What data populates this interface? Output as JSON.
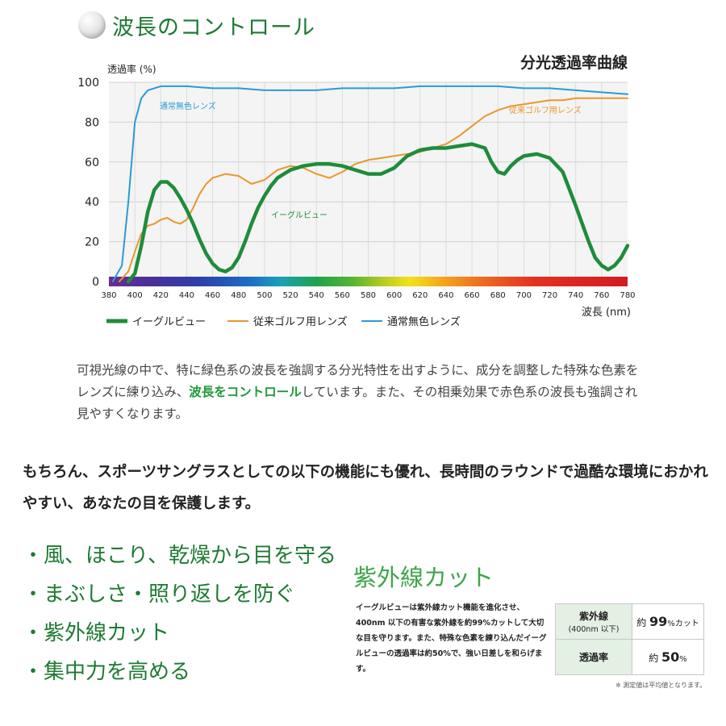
{
  "section_title": "波長のコントロール",
  "chart_data": {
    "type": "line",
    "title": "分光透過率曲線",
    "ylabel": "透過率 (%)",
    "xlabel": "波長 (nm)",
    "ylim": [
      0,
      100
    ],
    "xlim": [
      380,
      780
    ],
    "x_ticks": [
      380,
      400,
      420,
      440,
      460,
      480,
      500,
      520,
      540,
      560,
      580,
      600,
      620,
      640,
      660,
      680,
      700,
      720,
      740,
      760,
      780
    ],
    "y_ticks": [
      0,
      20,
      40,
      60,
      80,
      100
    ],
    "legend_position": "bottom",
    "series": [
      {
        "name": "イーグルビュー",
        "color": "#1e8c3a",
        "points": [
          [
            395,
            0
          ],
          [
            400,
            4
          ],
          [
            405,
            18
          ],
          [
            410,
            35
          ],
          [
            415,
            46
          ],
          [
            420,
            50
          ],
          [
            425,
            50
          ],
          [
            430,
            47
          ],
          [
            435,
            42
          ],
          [
            440,
            36
          ],
          [
            445,
            29
          ],
          [
            450,
            21
          ],
          [
            455,
            14
          ],
          [
            460,
            9
          ],
          [
            465,
            6
          ],
          [
            470,
            5
          ],
          [
            475,
            7
          ],
          [
            480,
            12
          ],
          [
            485,
            20
          ],
          [
            490,
            29
          ],
          [
            495,
            37
          ],
          [
            500,
            43
          ],
          [
            505,
            48
          ],
          [
            510,
            52
          ],
          [
            520,
            56
          ],
          [
            530,
            58
          ],
          [
            540,
            59
          ],
          [
            550,
            59
          ],
          [
            560,
            58
          ],
          [
            570,
            56
          ],
          [
            580,
            54
          ],
          [
            590,
            54
          ],
          [
            600,
            57
          ],
          [
            610,
            63
          ],
          [
            620,
            66
          ],
          [
            630,
            67
          ],
          [
            640,
            67
          ],
          [
            650,
            68
          ],
          [
            660,
            69
          ],
          [
            670,
            67
          ],
          [
            675,
            60
          ],
          [
            680,
            55
          ],
          [
            685,
            54
          ],
          [
            690,
            58
          ],
          [
            695,
            61
          ],
          [
            700,
            63
          ],
          [
            710,
            64
          ],
          [
            720,
            62
          ],
          [
            730,
            55
          ],
          [
            740,
            38
          ],
          [
            750,
            20
          ],
          [
            755,
            12
          ],
          [
            760,
            8
          ],
          [
            765,
            6
          ],
          [
            770,
            8
          ],
          [
            775,
            12
          ],
          [
            780,
            18
          ]
        ]
      },
      {
        "name": "従来ゴルフ用レンズ",
        "color": "#e8972b",
        "points": [
          [
            388,
            0
          ],
          [
            395,
            5
          ],
          [
            400,
            15
          ],
          [
            405,
            24
          ],
          [
            410,
            28
          ],
          [
            415,
            29
          ],
          [
            420,
            31
          ],
          [
            425,
            32
          ],
          [
            430,
            30
          ],
          [
            435,
            29
          ],
          [
            440,
            31
          ],
          [
            445,
            37
          ],
          [
            450,
            44
          ],
          [
            455,
            49
          ],
          [
            460,
            52
          ],
          [
            470,
            54
          ],
          [
            480,
            53
          ],
          [
            490,
            49
          ],
          [
            500,
            51
          ],
          [
            510,
            56
          ],
          [
            520,
            58
          ],
          [
            530,
            57
          ],
          [
            540,
            54
          ],
          [
            550,
            52
          ],
          [
            560,
            55
          ],
          [
            570,
            59
          ],
          [
            580,
            61
          ],
          [
            590,
            62
          ],
          [
            600,
            63
          ],
          [
            610,
            64
          ],
          [
            620,
            65
          ],
          [
            630,
            67
          ],
          [
            640,
            69
          ],
          [
            650,
            73
          ],
          [
            660,
            78
          ],
          [
            670,
            83
          ],
          [
            680,
            86
          ],
          [
            690,
            88
          ],
          [
            700,
            89
          ],
          [
            710,
            90
          ],
          [
            720,
            91
          ],
          [
            730,
            91
          ],
          [
            740,
            92
          ],
          [
            750,
            92
          ],
          [
            760,
            92
          ],
          [
            770,
            92
          ],
          [
            780,
            92
          ]
        ]
      },
      {
        "name": "通常無色レンズ",
        "color": "#2a9ad6",
        "points": [
          [
            383,
            0
          ],
          [
            390,
            8
          ],
          [
            395,
            40
          ],
          [
            400,
            80
          ],
          [
            405,
            92
          ],
          [
            410,
            96
          ],
          [
            420,
            98
          ],
          [
            440,
            98
          ],
          [
            460,
            97
          ],
          [
            480,
            97
          ],
          [
            500,
            96
          ],
          [
            520,
            96
          ],
          [
            540,
            96
          ],
          [
            560,
            97
          ],
          [
            580,
            97
          ],
          [
            600,
            97
          ],
          [
            620,
            98
          ],
          [
            640,
            98
          ],
          [
            660,
            98
          ],
          [
            680,
            98
          ],
          [
            700,
            97
          ],
          [
            720,
            97
          ],
          [
            740,
            96
          ],
          [
            760,
            95
          ],
          [
            780,
            94
          ]
        ]
      }
    ],
    "annotations": [
      {
        "text": "通常無色レンズ",
        "series": 2
      },
      {
        "text": "従来ゴルフ用レンズ",
        "series": 1
      },
      {
        "text": "イーグルビュー",
        "series": 0
      }
    ]
  },
  "paragraph": {
    "before": "可視光線の中で、特に緑色系の波長を強調する分光特性を出すように、成分を調整した特殊な色素をレンズに練り込み、",
    "highlight": "波長をコントロール",
    "after": "しています。また、その相乗効果で赤色系の波長も強調され見やすくなります。"
  },
  "lead_text": "もちろん、スポーツサングラスとしての以下の機能にも優れ、長時間のラウンドで過酷な環境におかれやすい、あなたの目を保護します。",
  "features": [
    "・風、ほこり、乾燥から目を守る",
    "・まぶしさ・照り返しを防ぐ",
    "・紫外線カット",
    "・集中力を高める"
  ],
  "uv": {
    "title": "紫外線カット",
    "description": "イーグルビューは紫外線カット機能を進化させ、400nm 以下の有害な紫外線を約99%カットして大切な目を守ります。また、特殊な色素を練り込んだイーグルビューの透過率は約50%で、強い日差しを和らげます。",
    "table": {
      "row1_header": "紫外線",
      "row1_sub": "(400nm 以下)",
      "row1_prefix": "約",
      "row1_value": "99",
      "row1_unit": "%カット",
      "row2_header": "透過率",
      "row2_prefix": "約",
      "row2_value": "50",
      "row2_unit": "%"
    },
    "note": "※ 測定値は平均値となります。"
  }
}
